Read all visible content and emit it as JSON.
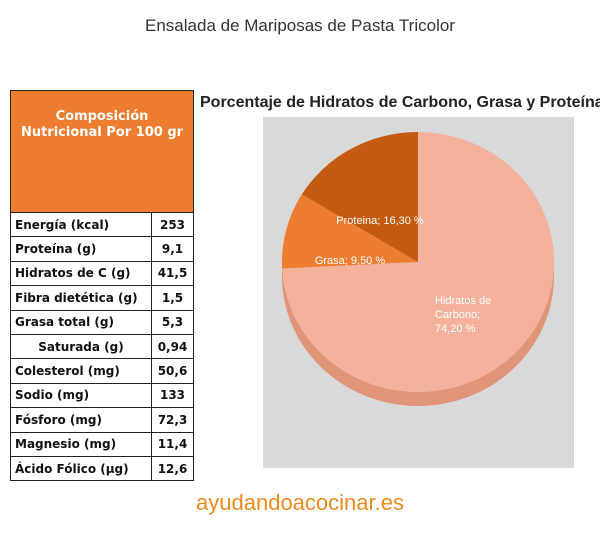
{
  "page_title": "Ensalada de Mariposas de Pasta Tricolor",
  "table": {
    "header": "Composición Nutricional Por 100 gr",
    "rows": [
      {
        "label": "Energía (kcal)",
        "value": "253"
      },
      {
        "label": "Proteína (g)",
        "value": "9,1"
      },
      {
        "label": "Hidratos de C (g)",
        "value": "41,5"
      },
      {
        "label": "Fibra dietética (g)",
        "value": "1,5"
      },
      {
        "label": "Grasa total (g)",
        "value": "5,3"
      },
      {
        "label": "Saturada (g)",
        "value": "0,94",
        "indent": true
      },
      {
        "label": "Colesterol (mg)",
        "value": "50,6"
      },
      {
        "label": "Sodio (mg)",
        "value": "133"
      },
      {
        "label": "Fósforo (mg)",
        "value": "72,3"
      },
      {
        "label": "Magnesio (mg)",
        "value": "11,4"
      },
      {
        "label": "Ácido Fólico (µg)",
        "value": "12,6"
      }
    ]
  },
  "chart_data": {
    "type": "pie",
    "title": "Porcentaje de Hidratos de Carbono, Grasa y Proteína",
    "slices": [
      {
        "name": "Hidratos de Carbono",
        "value": 74.2,
        "label_lines": [
          "Hidratos de",
          "Carbono;",
          "74,20 %"
        ],
        "color": "#f4b19b",
        "side_color": "#e09478"
      },
      {
        "name": "Grasa",
        "value": 9.5,
        "label_lines": [
          "Grasa; 9,50 %"
        ],
        "color": "#ed7d31",
        "side_color": "#c2631f"
      },
      {
        "name": "Proteína",
        "value": 16.3,
        "label_lines": [
          "Proteina; 16,30 %"
        ],
        "color": "#c55a11",
        "side_color": "#9c460b"
      }
    ],
    "background": "#d9d9d9",
    "legend": "none"
  },
  "footer": "ayudandoacocinar.es"
}
